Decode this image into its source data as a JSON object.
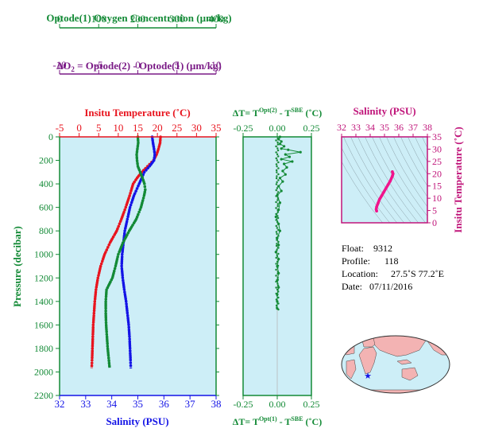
{
  "colors": {
    "green": "#138a36",
    "purple": "#7a1a86",
    "red": "#e8141e",
    "blue": "#1414e6",
    "magenta": "#c0157a",
    "pink": "#f0158c",
    "panel_bg": "#cdeef7",
    "land": "#f3b3b3"
  },
  "top_axes": {
    "oxygen": {
      "title": "Optode(1) Oxygen Concentration (µm/kg)",
      "range": [
        0,
        400
      ],
      "ticks": [
        "0",
        "100",
        "200",
        "300",
        "400"
      ]
    },
    "delta_o2": {
      "title_prefix": "ΔO",
      "title_sub": "2",
      "title_rest": " = Optode(2) - Optode(1)   (µm/kg)",
      "range": [
        -10,
        10
      ],
      "ticks": [
        "-10",
        "-5",
        "0",
        "5",
        "10"
      ]
    }
  },
  "chart_data": [
    {
      "type": "line",
      "panel": "profile",
      "x_top": {
        "title": "Insitu Temperature (˚C)",
        "range": [
          -5,
          35
        ],
        "ticks": [
          "-5",
          "0",
          "5",
          "10",
          "15",
          "20",
          "25",
          "30",
          "35"
        ]
      },
      "x_bottom": {
        "title": "Salinity (PSU)",
        "range": [
          32,
          38
        ],
        "ticks": [
          "32",
          "33",
          "34",
          "35",
          "36",
          "37",
          "38"
        ]
      },
      "y": {
        "title": "Pressure (decibar)",
        "range": [
          0,
          2200
        ],
        "inverted": true,
        "ticks": [
          "0",
          "200",
          "400",
          "600",
          "800",
          "1000",
          "1200",
          "1400",
          "1600",
          "1800",
          "2000",
          "2200"
        ]
      },
      "series": [
        {
          "color": "red",
          "axis": "temperature",
          "points": [
            [
              20.8,
              0
            ],
            [
              20.7,
              50
            ],
            [
              20.3,
              100
            ],
            [
              19.8,
              150
            ],
            [
              19.0,
              200
            ],
            [
              17.5,
              250
            ],
            [
              16.0,
              300
            ],
            [
              14.8,
              350
            ],
            [
              13.8,
              400
            ],
            [
              12.9,
              500
            ],
            [
              11.9,
              600
            ],
            [
              10.8,
              700
            ],
            [
              9.6,
              800
            ],
            [
              7.9,
              900
            ],
            [
              6.5,
              1000
            ],
            [
              5.5,
              1100
            ],
            [
              4.8,
              1200
            ],
            [
              4.3,
              1300
            ],
            [
              4.0,
              1400
            ],
            [
              3.8,
              1500
            ],
            [
              3.6,
              1600
            ],
            [
              3.5,
              1700
            ],
            [
              3.4,
              1800
            ],
            [
              3.3,
              1900
            ],
            [
              3.2,
              1970
            ]
          ]
        },
        {
          "color": "blue",
          "axis": "salinity",
          "points": [
            [
              35.55,
              0
            ],
            [
              35.58,
              50
            ],
            [
              35.62,
              100
            ],
            [
              35.65,
              150
            ],
            [
              35.62,
              200
            ],
            [
              35.45,
              250
            ],
            [
              35.25,
              300
            ],
            [
              35.05,
              400
            ],
            [
              34.85,
              500
            ],
            [
              34.7,
              600
            ],
            [
              34.6,
              700
            ],
            [
              34.5,
              800
            ],
            [
              34.45,
              900
            ],
            [
              34.4,
              1000
            ],
            [
              34.38,
              1100
            ],
            [
              34.42,
              1200
            ],
            [
              34.48,
              1300
            ],
            [
              34.55,
              1400
            ],
            [
              34.6,
              1500
            ],
            [
              34.65,
              1600
            ],
            [
              34.68,
              1700
            ],
            [
              34.7,
              1800
            ],
            [
              34.72,
              1900
            ],
            [
              34.73,
              1970
            ]
          ]
        },
        {
          "color": "green",
          "axis": "oxygen",
          "points": [
            [
              200,
              0
            ],
            [
              201,
              50
            ],
            [
              199,
              100
            ],
            [
              197,
              150
            ],
            [
              198,
              200
            ],
            [
              200,
              250
            ],
            [
              206,
              300
            ],
            [
              212,
              350
            ],
            [
              217,
              400
            ],
            [
              219,
              450
            ],
            [
              216,
              500
            ],
            [
              208,
              600
            ],
            [
              196,
              700
            ],
            [
              178,
              800
            ],
            [
              162,
              900
            ],
            [
              150,
              1000
            ],
            [
              143,
              1100
            ],
            [
              135,
              1200
            ],
            [
              120,
              1300
            ],
            [
              118,
              1400
            ],
            [
              118,
              1500
            ],
            [
              119,
              1600
            ],
            [
              121,
              1700
            ],
            [
              123,
              1800
            ],
            [
              126,
              1900
            ],
            [
              128,
              1970
            ]
          ]
        }
      ]
    },
    {
      "type": "scatter",
      "panel": "delta_t",
      "x_top": {
        "title_prefix": "ΔT= T",
        "title_sup1": "Opt(2)",
        "title_mid": " - T",
        "title_sup2": "SBE",
        "title_unit": " (˚C)",
        "range": [
          -0.25,
          0.25
        ],
        "ticks": [
          "-0.25",
          "0.00",
          "0.25"
        ]
      },
      "x_bottom": {
        "title_prefix": "ΔT= T",
        "title_sup1": "Opt(1)",
        "title_mid": " - T",
        "title_sup2": "SBE",
        "title_unit": " (˚C)",
        "range": [
          -0.25,
          0.25
        ],
        "ticks": [
          "-0.25",
          "0.00",
          "0.25"
        ]
      },
      "y_range": [
        0,
        2200
      ],
      "series": [
        {
          "color": "green",
          "points": [
            [
              0.02,
              0
            ],
            [
              0.01,
              20
            ],
            [
              0.03,
              40
            ],
            [
              0.02,
              60
            ],
            [
              0.05,
              80
            ],
            [
              0.03,
              100
            ],
            [
              0.08,
              110
            ],
            [
              0.17,
              130
            ],
            [
              0.06,
              150
            ],
            [
              0.09,
              170
            ],
            [
              0.03,
              190
            ],
            [
              0.11,
              210
            ],
            [
              0.05,
              230
            ],
            [
              0.07,
              260
            ],
            [
              0.04,
              290
            ],
            [
              0.06,
              320
            ],
            [
              0.02,
              350
            ],
            [
              0.04,
              380
            ],
            [
              0.01,
              420
            ],
            [
              0.03,
              460
            ],
            [
              0.0,
              500
            ],
            [
              0.02,
              560
            ],
            [
              0.01,
              620
            ],
            [
              -0.01,
              680
            ],
            [
              0.01,
              740
            ],
            [
              0.02,
              800
            ],
            [
              0.0,
              860
            ],
            [
              0.01,
              920
            ],
            [
              -0.01,
              980
            ],
            [
              0.01,
              1040
            ],
            [
              0.0,
              1100
            ],
            [
              0.01,
              1160
            ],
            [
              0.0,
              1220
            ],
            [
              0.01,
              1280
            ],
            [
              0.0,
              1340
            ],
            [
              0.0,
              1400
            ],
            [
              0.0,
              1460
            ]
          ]
        }
      ]
    },
    {
      "type": "line",
      "panel": "ts_diagram",
      "x": {
        "title": "Salinity (PSU)",
        "range": [
          32,
          38
        ],
        "ticks": [
          "32",
          "33",
          "34",
          "35",
          "36",
          "37",
          "38"
        ]
      },
      "y": {
        "title": "Insitu Temperature (˚C)",
        "range": [
          0,
          35
        ],
        "ticks": [
          "0",
          "5",
          "10",
          "15",
          "20",
          "25",
          "30",
          "35"
        ]
      },
      "series": [
        {
          "color": "magenta",
          "points": [
            [
              35.55,
              20.8
            ],
            [
              35.6,
              20.0
            ],
            [
              35.55,
              19.0
            ],
            [
              35.4,
              17.0
            ],
            [
              35.25,
              15.5
            ],
            [
              35.1,
              14.0
            ],
            [
              34.95,
              12.5
            ],
            [
              34.8,
              11.0
            ],
            [
              34.65,
              9.5
            ],
            [
              34.55,
              8.0
            ],
            [
              34.45,
              6.5
            ],
            [
              34.42,
              5.5
            ],
            [
              34.45,
              4.8
            ]
          ]
        }
      ]
    }
  ],
  "info": {
    "float_label": "Float:",
    "float_value": "9312",
    "profile_label": "Profile:",
    "profile_value": "118",
    "location_label": "Location:",
    "location_value": "27.5˚S  77.2˚E",
    "date_label": "Date:",
    "date_value": "07/11/2016"
  },
  "map": {
    "marker_lon": 77.2,
    "marker_lat": -27.5,
    "marker_color": "blue"
  }
}
